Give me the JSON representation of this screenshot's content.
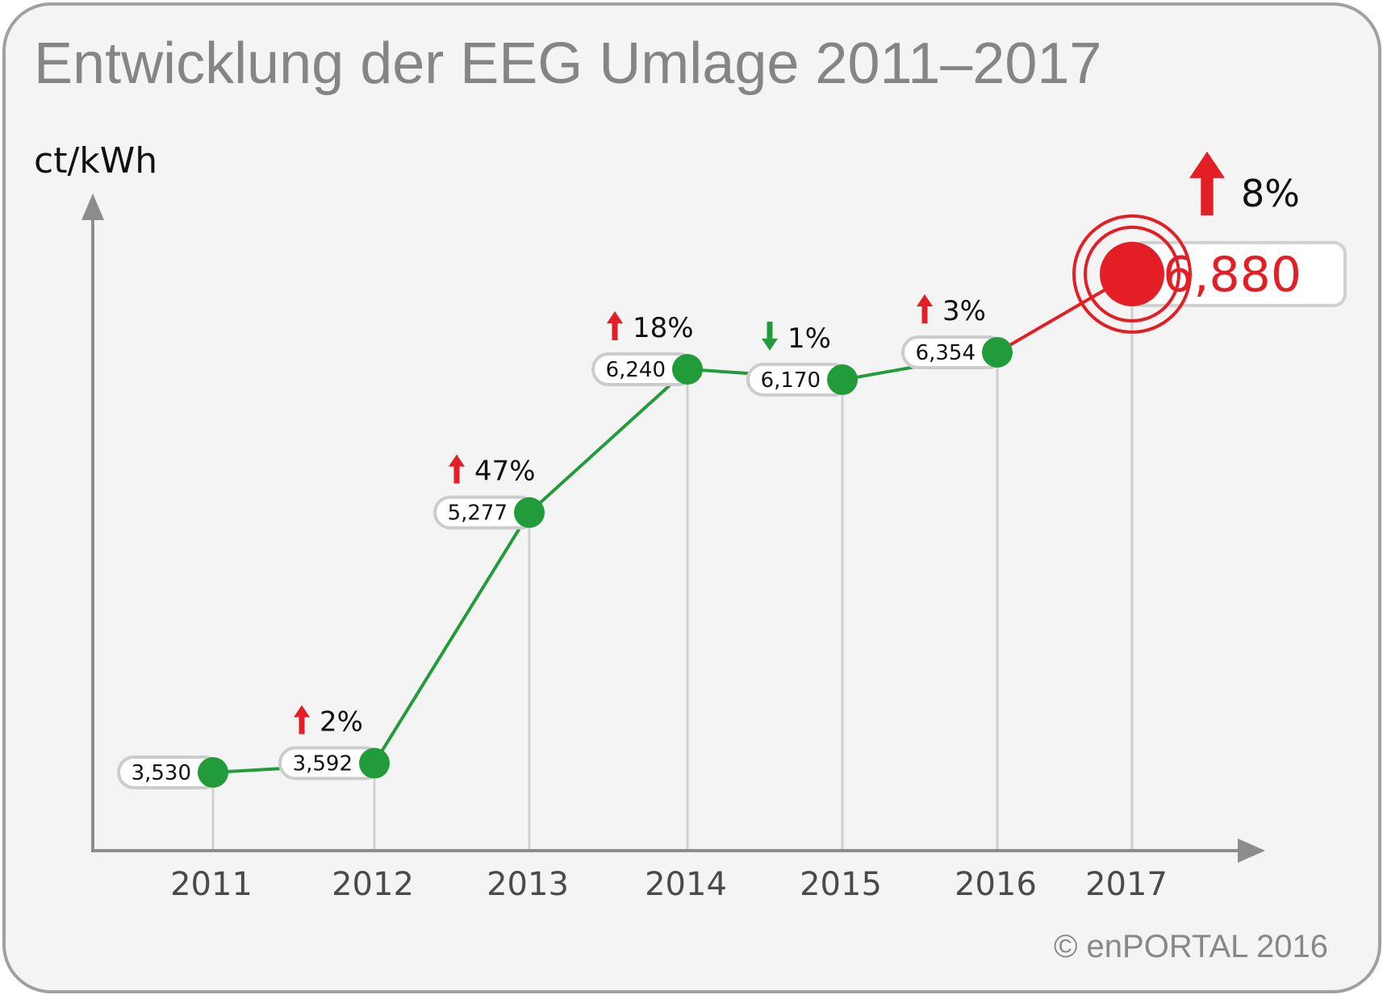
{
  "chart_data": {
    "type": "line",
    "title": "Entwicklung der EEG Umlage 2011–2017",
    "xlabel": "",
    "ylabel": "ct/kWh",
    "categories": [
      "2011",
      "2012",
      "2013",
      "2014",
      "2015",
      "2016",
      "2017"
    ],
    "series": [
      {
        "name": "EEG Umlage",
        "values": [
          3.53,
          3.592,
          5.277,
          6.24,
          6.17,
          6.354,
          6.88
        ]
      }
    ],
    "value_labels": [
      "3,530",
      "3,592",
      "5,277",
      "6,240",
      "6,170",
      "6,354",
      "6,880"
    ],
    "change_labels": [
      null,
      {
        "direction": "up",
        "text": "2%"
      },
      {
        "direction": "up",
        "text": "47%"
      },
      {
        "direction": "up",
        "text": "18%"
      },
      {
        "direction": "down",
        "text": "1%"
      },
      {
        "direction": "up",
        "text": "3%"
      },
      {
        "direction": "up",
        "text": "8%"
      }
    ],
    "highlight_index": 6,
    "grid": false,
    "legend": "none",
    "colors": {
      "line": "#229c3b",
      "highlight": "#e31e24",
      "up_arrow": "#e31e24",
      "down_arrow": "#229c3b",
      "axis": "#8c8c8c",
      "dropline": "#cfcfcf"
    }
  },
  "footer": {
    "copyright": "© enPORTAL 2016"
  }
}
